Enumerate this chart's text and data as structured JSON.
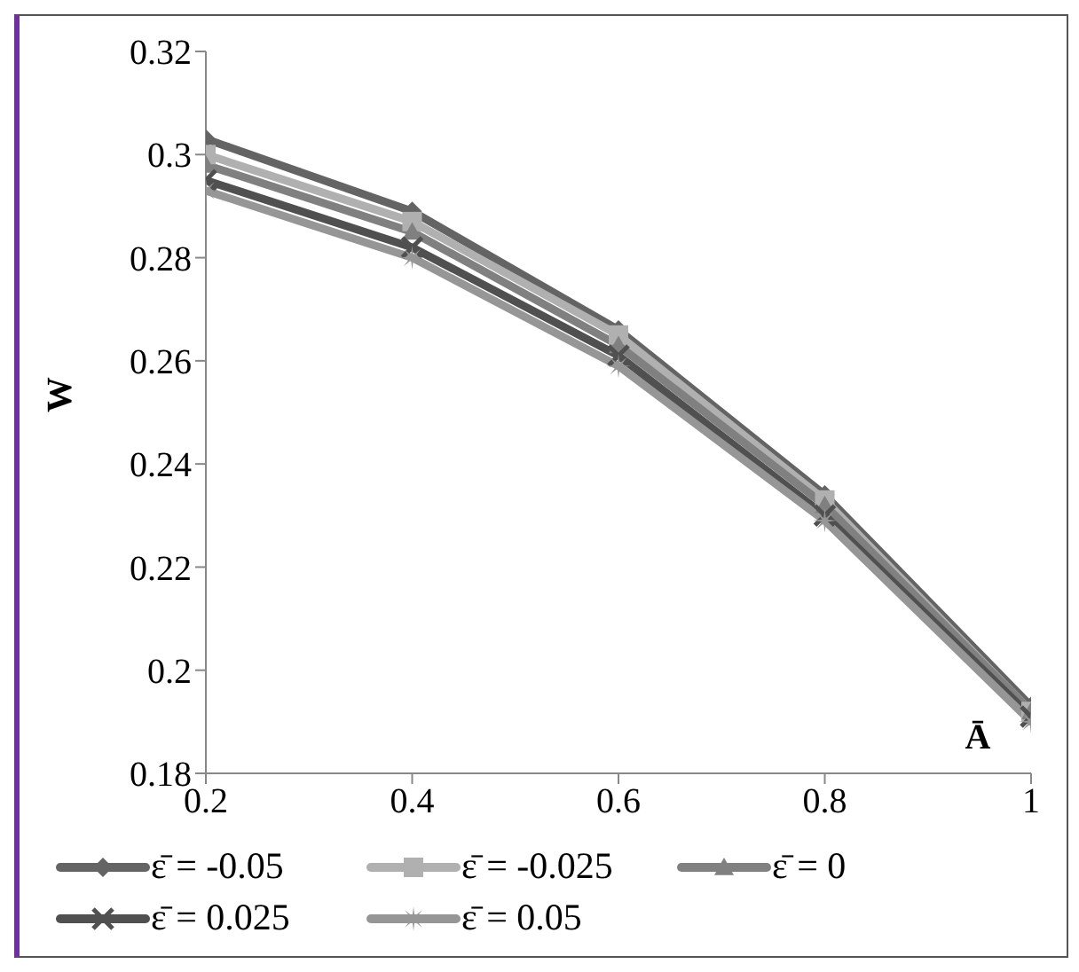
{
  "chart_data": {
    "type": "line",
    "xlabel": "Ā",
    "ylabel": "W",
    "x": [
      0.2,
      0.4,
      0.6,
      0.8,
      1
    ],
    "xlim": [
      0.2,
      1
    ],
    "xticks": [
      0.2,
      0.4,
      0.6,
      0.8,
      1
    ],
    "ylim": [
      0.18,
      0.32
    ],
    "yticks": [
      0.18,
      0.2,
      0.22,
      0.24,
      0.26,
      0.28,
      0.3,
      0.32
    ],
    "grid": false,
    "legend": "bottom",
    "series": [
      {
        "name": "ε̄ = -0.05",
        "color": "#646464",
        "marker": "diamond",
        "values": [
          0.303,
          0.289,
          0.266,
          0.234,
          0.193
        ]
      },
      {
        "name": "ε̄ = -0.025",
        "color": "#b0b0b0",
        "marker": "square",
        "values": [
          0.3,
          0.287,
          0.265,
          0.233,
          0.192
        ]
      },
      {
        "name": "ε̄ = 0",
        "color": "#808080",
        "marker": "triangle",
        "values": [
          0.298,
          0.285,
          0.263,
          0.232,
          0.192
        ]
      },
      {
        "name": "ε̄ = 0.025",
        "color": "#505050",
        "marker": "cross",
        "values": [
          0.295,
          0.282,
          0.261,
          0.23,
          0.191
        ]
      },
      {
        "name": "ε̄ = 0.05",
        "color": "#969696",
        "marker": "star",
        "values": [
          0.293,
          0.28,
          0.259,
          0.229,
          0.19
        ]
      }
    ]
  }
}
